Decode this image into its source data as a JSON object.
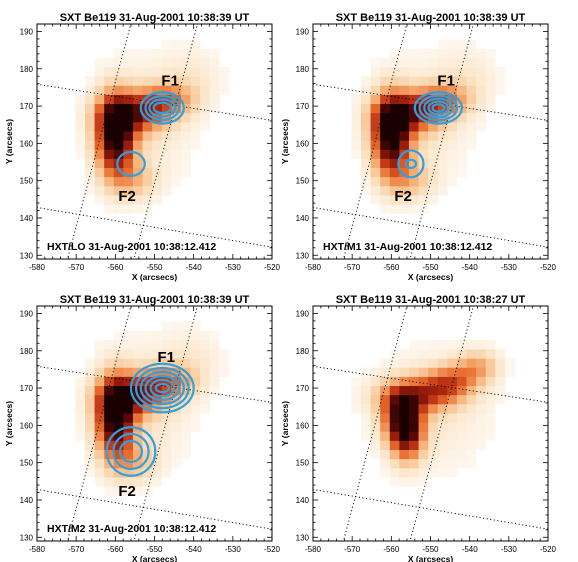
{
  "panels": [
    {
      "title": "SXT Be119 31-Aug-2001 10:38:39 UT",
      "caption": "HXT/LO  31-Aug-2001  10:38:12.412",
      "labels": [
        {
          "text": "F1",
          "x": -546,
          "y": 175.5
        },
        {
          "text": "F2",
          "x": -557,
          "y": 144.5
        }
      ],
      "contours": [
        {
          "cx": -548,
          "cy": 169.5,
          "rx": [
            5.5,
            4.3,
            3.3,
            2.2
          ],
          "ry": [
            4.2,
            3.2,
            2.3,
            1.4
          ]
        },
        {
          "cx": -556,
          "cy": 154.5,
          "rx": [
            3.5
          ],
          "ry": [
            3.2
          ]
        }
      ],
      "emission": "a"
    },
    {
      "title": "SXT Be119 31-Aug-2001 10:38:39 UT",
      "caption": "HXT/M1  31-Aug-2001  10:38:12.412",
      "labels": [
        {
          "text": "F1",
          "x": -546,
          "y": 175.5
        },
        {
          "text": "F2",
          "x": -557,
          "y": 144.5
        }
      ],
      "contours": [
        {
          "cx": -548,
          "cy": 169.5,
          "rx": [
            6,
            4.8,
            3.6,
            2.5,
            1.5
          ],
          "ry": [
            4.2,
            3.3,
            2.5,
            1.7,
            1
          ]
        },
        {
          "cx": -555,
          "cy": 154.5,
          "rx": [
            3.2,
            1.3
          ],
          "ry": [
            3.6,
            1.1
          ]
        }
      ],
      "emission": "a"
    },
    {
      "title": "SXT Be119 31-Aug-2001 10:38:39 UT",
      "caption": "HXT/M2  31-Aug-2001  10:38:12.412",
      "labels": [
        {
          "text": "F1",
          "x": -547,
          "y": 177
        },
        {
          "text": "F2",
          "x": -557,
          "y": 141
        }
      ],
      "contours": [
        {
          "cx": -548,
          "cy": 170,
          "rx": [
            8,
            6.7,
            5.5,
            4.3,
            3,
            1.7
          ],
          "ry": [
            6.5,
            5.4,
            4.3,
            3.2,
            2.2,
            1.1
          ]
        },
        {
          "cx": -556,
          "cy": 153,
          "rx": [
            6.2,
            4.5,
            2.8
          ],
          "ry": [
            6.5,
            4.7,
            2.8
          ]
        }
      ],
      "emission": "a"
    },
    {
      "title": "SXT Be119 31-Aug-2001 10:38:27 UT",
      "caption": "",
      "labels": [],
      "contours": [],
      "emission": "b"
    }
  ],
  "axes": {
    "xlabel": "X (arcsecs)",
    "ylabel": "Y (arcsecs)",
    "xlim": [
      -580,
      -520
    ],
    "ylim": [
      129,
      192
    ],
    "xticks": [
      -580,
      -570,
      -560,
      -550,
      -540,
      -530,
      -520
    ],
    "yticks": [
      130,
      140,
      150,
      160,
      170,
      180,
      190
    ]
  },
  "colors": {
    "contour": "#2fa0e0",
    "colormap": [
      "#ffffff",
      "#fbe2c2",
      "#f6b57c",
      "#e86b2d",
      "#b22710",
      "#5c0905",
      "#1a0000"
    ]
  }
}
